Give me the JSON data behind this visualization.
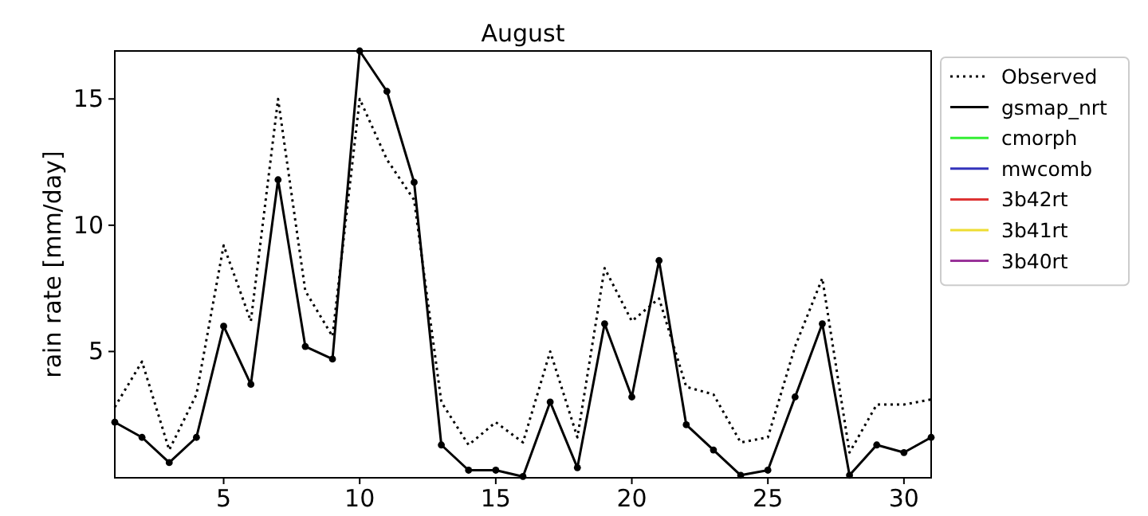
{
  "chart_data": {
    "type": "line",
    "title": "August",
    "ylabel": "rain rate [mm/day]",
    "x": [
      1,
      2,
      3,
      4,
      5,
      6,
      7,
      8,
      9,
      10,
      11,
      12,
      13,
      14,
      15,
      16,
      17,
      18,
      19,
      20,
      21,
      22,
      23,
      24,
      25,
      26,
      27,
      28,
      29,
      30,
      31
    ],
    "xlim": [
      1,
      31
    ],
    "xticks": [
      5,
      10,
      15,
      20,
      25,
      30
    ],
    "ylim": [
      0,
      16.9
    ],
    "yticks": [
      5,
      10,
      15
    ],
    "legend": "right",
    "grid": false,
    "series": [
      {
        "name": "Observed",
        "color": "#000000",
        "line_style": "dotted",
        "marker": "none",
        "values": [
          2.8,
          4.6,
          1.1,
          3.3,
          9.2,
          6.2,
          15.0,
          7.4,
          5.6,
          15.0,
          12.6,
          11.0,
          3.0,
          1.3,
          2.2,
          1.4,
          5.0,
          1.6,
          8.3,
          6.2,
          7.1,
          3.6,
          3.3,
          1.4,
          1.6,
          5.2,
          7.9,
          1.0,
          2.9,
          2.9,
          3.1
        ]
      },
      {
        "name": "gsmap_nrt",
        "color": "#000000",
        "line_style": "solid",
        "marker": "circle",
        "values": [
          2.2,
          1.6,
          0.6,
          1.6,
          6.0,
          3.7,
          11.8,
          5.2,
          4.7,
          16.9,
          15.3,
          11.7,
          1.3,
          0.3,
          0.3,
          0.05,
          3.0,
          0.4,
          6.1,
          3.2,
          8.6,
          2.1,
          1.1,
          0.1,
          0.3,
          3.2,
          6.1,
          0.1,
          1.3,
          1.0,
          1.6
        ]
      },
      {
        "name": "cmorph",
        "color": "#33ee33",
        "line_style": "solid",
        "marker": "none",
        "values": [
          null,
          null,
          null,
          null,
          null,
          null,
          null,
          null,
          null,
          null,
          null,
          null,
          null,
          null,
          null,
          null,
          null,
          null,
          null,
          null,
          null,
          null,
          null,
          null,
          null,
          null,
          null,
          null,
          null,
          null,
          null
        ]
      },
      {
        "name": "mwcomb",
        "color": "#3333bb",
        "line_style": "solid",
        "marker": "none",
        "values": [
          null,
          null,
          null,
          null,
          null,
          null,
          null,
          null,
          null,
          null,
          null,
          null,
          null,
          null,
          null,
          null,
          null,
          null,
          null,
          null,
          null,
          null,
          null,
          null,
          null,
          null,
          null,
          null,
          null,
          null,
          null
        ]
      },
      {
        "name": "3b42rt",
        "color": "#dd3333",
        "line_style": "solid",
        "marker": "none",
        "values": [
          null,
          null,
          null,
          null,
          null,
          null,
          null,
          null,
          null,
          null,
          null,
          null,
          null,
          null,
          null,
          null,
          null,
          null,
          null,
          null,
          null,
          null,
          null,
          null,
          null,
          null,
          null,
          null,
          null,
          null,
          null
        ]
      },
      {
        "name": "3b41rt",
        "color": "#eedd33",
        "line_style": "solid",
        "marker": "none",
        "values": [
          null,
          null,
          null,
          null,
          null,
          null,
          null,
          null,
          null,
          null,
          null,
          null,
          null,
          null,
          null,
          null,
          null,
          null,
          null,
          null,
          null,
          null,
          null,
          null,
          null,
          null,
          null,
          null,
          null,
          null,
          null
        ]
      },
      {
        "name": "3b40rt",
        "color": "#993399",
        "line_style": "solid",
        "marker": "none",
        "values": [
          null,
          null,
          null,
          null,
          null,
          null,
          null,
          null,
          null,
          null,
          null,
          null,
          null,
          null,
          null,
          null,
          null,
          null,
          null,
          null,
          null,
          null,
          null,
          null,
          null,
          null,
          null,
          null,
          null,
          null,
          null
        ]
      }
    ]
  }
}
